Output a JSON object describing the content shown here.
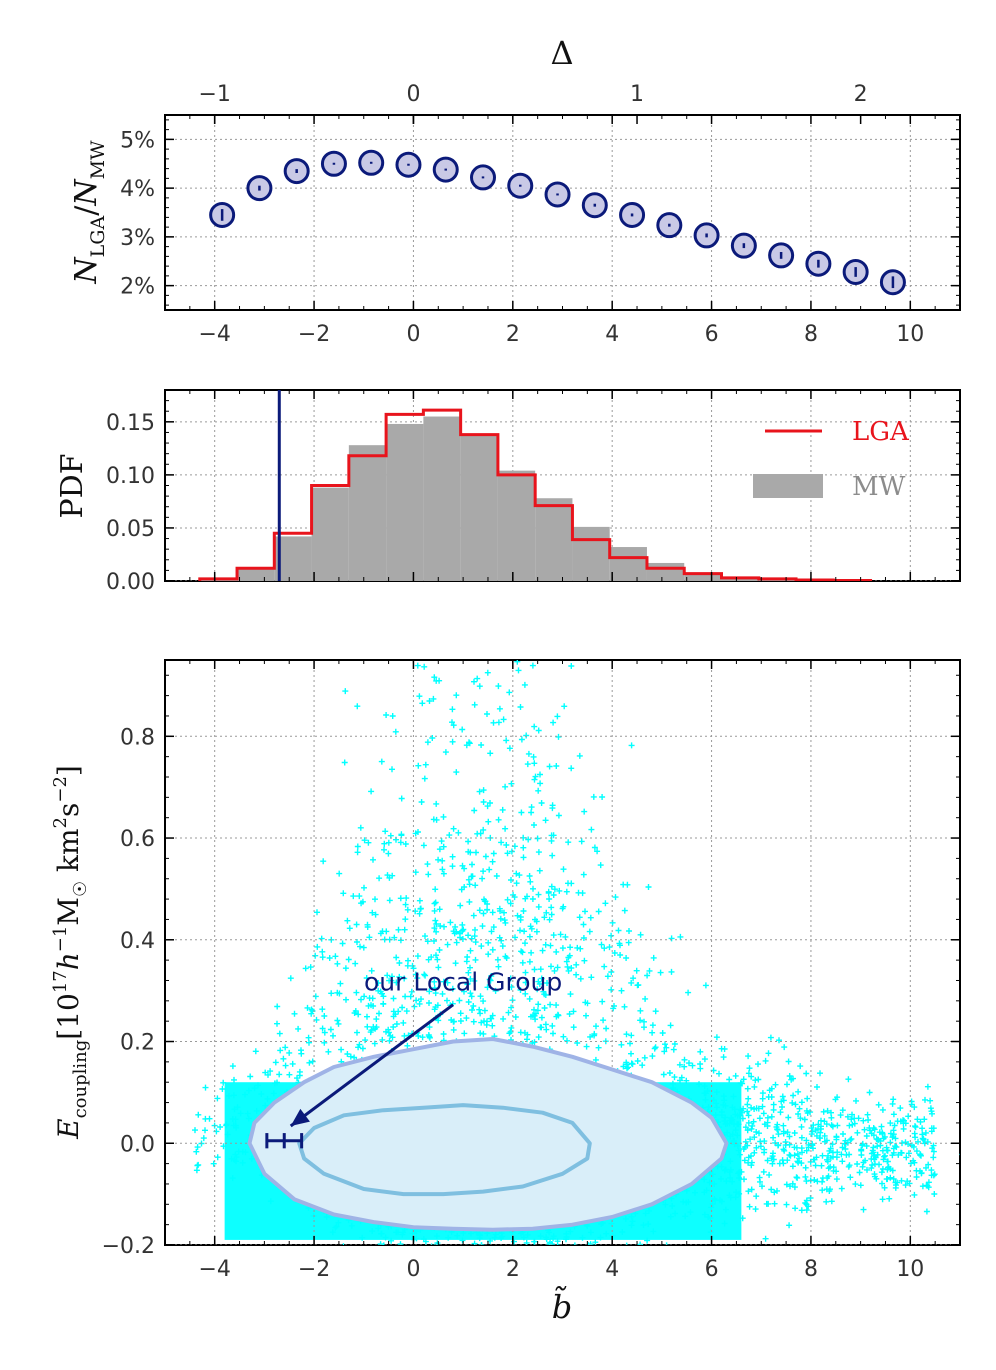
{
  "chart_data": [
    {
      "type": "scatter",
      "panel": "top",
      "xlabel": "",
      "top_xlabel": "Δ",
      "ylabel": "N_LGA / N_MW",
      "xlim": [
        -5,
        11
      ],
      "ylim": [
        1.5,
        5.5
      ],
      "xticks": [
        "−4",
        "−2",
        "0",
        "2",
        "4",
        "6",
        "8",
        "10"
      ],
      "xtick_values": [
        -4,
        -2,
        0,
        2,
        4,
        6,
        8,
        10
      ],
      "yticks": [
        "2%",
        "3%",
        "4%",
        "5%"
      ],
      "ytick_values": [
        2,
        3,
        4,
        5
      ],
      "top_xticks": [
        "−1",
        "0",
        "1",
        "2"
      ],
      "top_xtick_values_in_b": [
        -4,
        0,
        4.5,
        9
      ],
      "grid": true,
      "x": [
        -3.85,
        -3.1,
        -2.35,
        -1.6,
        -0.85,
        -0.1,
        0.65,
        1.4,
        2.15,
        2.9,
        3.65,
        4.4,
        5.15,
        5.9,
        6.65,
        7.4,
        8.15,
        8.9,
        9.65
      ],
      "y": [
        3.45,
        4.0,
        4.35,
        4.5,
        4.52,
        4.48,
        4.38,
        4.22,
        4.05,
        3.87,
        3.65,
        3.45,
        3.24,
        3.03,
        2.82,
        2.62,
        2.45,
        2.28,
        2.07
      ],
      "yerr": [
        0.12,
        0.05,
        0.04,
        0.02,
        0.02,
        0.02,
        0.02,
        0.02,
        0.02,
        0.02,
        0.03,
        0.03,
        0.03,
        0.04,
        0.05,
        0.07,
        0.08,
        0.1,
        0.12
      ]
    },
    {
      "type": "bar",
      "panel": "middle",
      "histtype": "step-and-filled",
      "ylabel": "PDF",
      "xlim": [
        -5,
        11
      ],
      "ylim": [
        0,
        0.18
      ],
      "yticks": [
        "0.00",
        "0.05",
        "0.10",
        "0.15"
      ],
      "ytick_values": [
        0.0,
        0.05,
        0.1,
        0.15
      ],
      "grid": true,
      "bin_edges": [
        -4.3,
        -3.55,
        -2.8,
        -2.05,
        -1.3,
        -0.55,
        0.2,
        0.95,
        1.7,
        2.45,
        3.2,
        3.95,
        4.7,
        5.45,
        6.2,
        6.95,
        7.7,
        8.45,
        9.2
      ],
      "series": [
        {
          "name": "LGA",
          "color": "#e8141c",
          "values": [
            0.002,
            0.012,
            0.045,
            0.09,
            0.118,
            0.157,
            0.161,
            0.138,
            0.1,
            0.071,
            0.039,
            0.022,
            0.012,
            0.007,
            0.003,
            0.002,
            0.001,
            0.0005
          ]
        },
        {
          "name": "MW",
          "color": "#a9a9a9",
          "values": [
            0.001,
            0.013,
            0.042,
            0.088,
            0.128,
            0.148,
            0.155,
            0.138,
            0.104,
            0.078,
            0.051,
            0.032,
            0.017,
            0.008,
            0.004,
            0.002,
            0.001,
            0.0005
          ]
        }
      ],
      "vline_x": -2.7,
      "vline_color": "#0b1a7a",
      "legend": {
        "position": "top-right",
        "entries": [
          "LGA",
          "MW"
        ]
      }
    },
    {
      "type": "scatter",
      "panel": "bottom",
      "xlabel": "b̃",
      "ylabel": "E_coupling [10^17 h^-1 M☉ km^2 s^-2]",
      "xlim": [
        -5,
        11
      ],
      "ylim": [
        -0.2,
        0.95
      ],
      "xticks": [
        "−4",
        "−2",
        "0",
        "2",
        "4",
        "6",
        "8",
        "10"
      ],
      "xtick_values": [
        -4,
        -2,
        0,
        2,
        4,
        6,
        8,
        10
      ],
      "yticks": [
        "−0.2",
        "0.0",
        "0.2",
        "0.4",
        "0.6",
        "0.8"
      ],
      "ytick_values": [
        -0.2,
        0.0,
        0.2,
        0.4,
        0.6,
        0.8
      ],
      "grid": true,
      "point_color": "#00ffff",
      "outer_contour": {
        "x": [
          -3.3,
          -3.2,
          -2.8,
          -2.2,
          -1.6,
          -0.8,
          0.0,
          0.8,
          1.6,
          2.4,
          3.2,
          4.0,
          4.8,
          5.6,
          6.0,
          6.3,
          6.2,
          5.6,
          4.8,
          4.0,
          3.2,
          2.4,
          1.6,
          0.8,
          0.0,
          -0.8,
          -1.6,
          -2.4,
          -3.0,
          -3.3
        ],
        "y": [
          0.0,
          0.04,
          0.08,
          0.12,
          0.15,
          0.17,
          0.185,
          0.2,
          0.205,
          0.19,
          0.17,
          0.145,
          0.12,
          0.08,
          0.05,
          0.0,
          -0.03,
          -0.08,
          -0.12,
          -0.145,
          -0.16,
          -0.168,
          -0.17,
          -0.168,
          -0.165,
          -0.155,
          -0.14,
          -0.11,
          -0.06,
          0.0
        ]
      },
      "inner_contour": {
        "x": [
          -2.3,
          -2.0,
          -1.4,
          -0.6,
          0.2,
          1.0,
          1.8,
          2.6,
          3.2,
          3.55,
          3.5,
          3.0,
          2.2,
          1.4,
          0.6,
          -0.2,
          -1.0,
          -1.8,
          -2.2,
          -2.3
        ],
        "y": [
          0.0,
          0.03,
          0.055,
          0.065,
          0.07,
          0.075,
          0.07,
          0.06,
          0.04,
          0.0,
          -0.03,
          -0.06,
          -0.085,
          -0.095,
          -0.1,
          -0.1,
          -0.09,
          -0.06,
          -0.03,
          0.0
        ]
      },
      "local_group": {
        "x": -2.6,
        "y": 0.005,
        "xerr": 0.35,
        "yerr": 0.015
      },
      "annotation": {
        "text": "our Local Group",
        "text_x": 1.0,
        "text_y": 0.3,
        "arrow_to_x": -2.55,
        "arrow_to_y": 0.03
      }
    }
  ],
  "colors": {
    "navy": "#0b1a7a",
    "marker_fill": "#c9c9e6",
    "cyan": "#00ffff",
    "contour_fill": "#d9eef9",
    "outer_contour_line": "#9fb3e6",
    "inner_contour_line": "#7fbfe0"
  }
}
